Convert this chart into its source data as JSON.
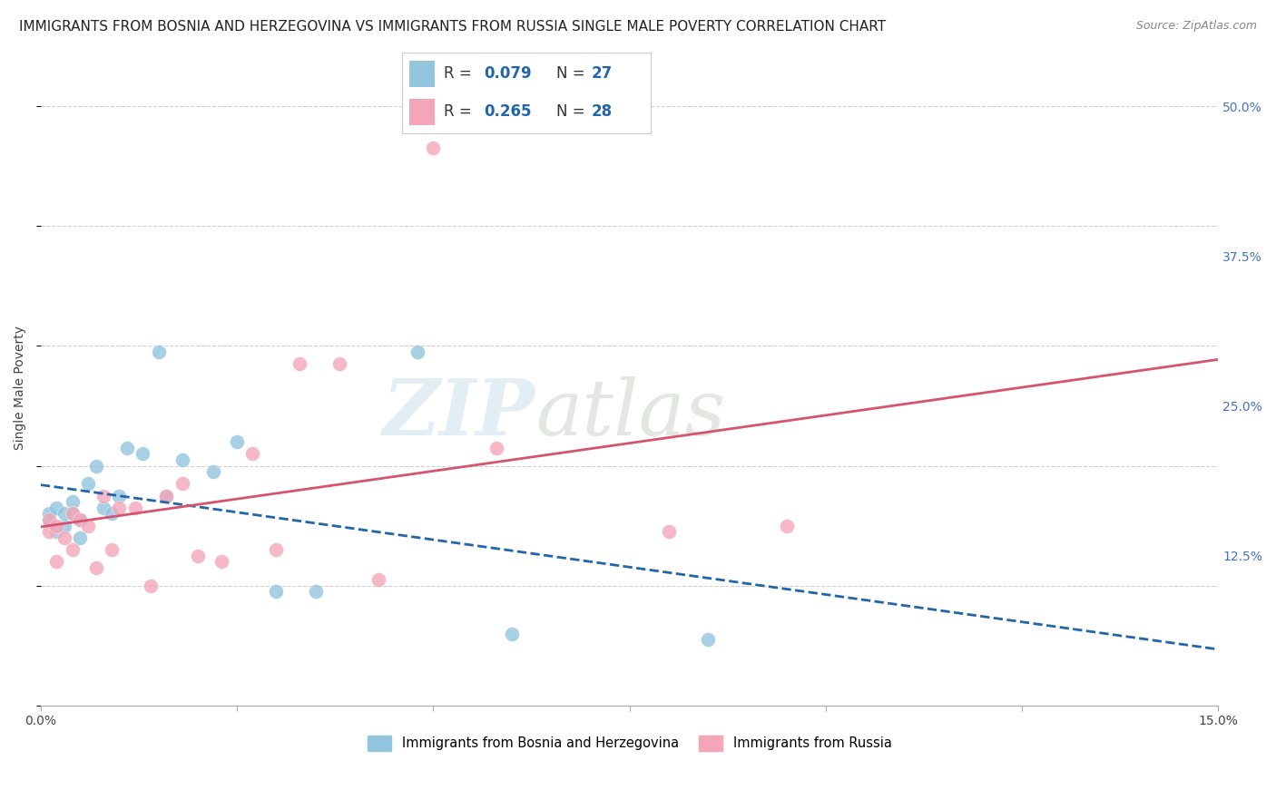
{
  "title": "IMMIGRANTS FROM BOSNIA AND HERZEGOVINA VS IMMIGRANTS FROM RUSSIA SINGLE MALE POVERTY CORRELATION CHART",
  "source": "Source: ZipAtlas.com",
  "ylabel": "Single Male Poverty",
  "xlim": [
    0.0,
    0.15
  ],
  "ylim": [
    0.0,
    0.53
  ],
  "xticks": [
    0.0,
    0.025,
    0.05,
    0.075,
    0.1,
    0.125,
    0.15
  ],
  "xtick_labels": [
    "0.0%",
    "",
    "",
    "",
    "",
    "",
    "15.0%"
  ],
  "ytick_labels_right": [
    "12.5%",
    "25.0%",
    "37.5%",
    "50.0%"
  ],
  "yticks_right": [
    0.125,
    0.25,
    0.375,
    0.5
  ],
  "legend_r1": "R = 0.079",
  "legend_n1": "N = 27",
  "legend_r2": "R = 0.265",
  "legend_n2": "N = 28",
  "color_bosnia": "#92c5de",
  "color_russia": "#f4a6b8",
  "color_bosnia_line": "#2166ac",
  "color_russia_line": "#d6546e",
  "watermark_zip": "ZIP",
  "watermark_atlas": "atlas",
  "bosnia_x": [
    0.001,
    0.001,
    0.002,
    0.002,
    0.003,
    0.003,
    0.004,
    0.004,
    0.005,
    0.005,
    0.006,
    0.007,
    0.008,
    0.009,
    0.01,
    0.011,
    0.013,
    0.015,
    0.016,
    0.018,
    0.022,
    0.025,
    0.03,
    0.035,
    0.048,
    0.06,
    0.085
  ],
  "bosnia_y": [
    0.155,
    0.16,
    0.145,
    0.165,
    0.15,
    0.16,
    0.17,
    0.16,
    0.14,
    0.155,
    0.185,
    0.2,
    0.165,
    0.16,
    0.175,
    0.215,
    0.21,
    0.295,
    0.175,
    0.205,
    0.195,
    0.22,
    0.095,
    0.095,
    0.295,
    0.06,
    0.055
  ],
  "russia_x": [
    0.001,
    0.001,
    0.002,
    0.002,
    0.003,
    0.004,
    0.004,
    0.005,
    0.006,
    0.007,
    0.008,
    0.009,
    0.01,
    0.012,
    0.014,
    0.016,
    0.018,
    0.02,
    0.023,
    0.027,
    0.03,
    0.033,
    0.038,
    0.043,
    0.05,
    0.058,
    0.08,
    0.095
  ],
  "russia_y": [
    0.155,
    0.145,
    0.12,
    0.15,
    0.14,
    0.13,
    0.16,
    0.155,
    0.15,
    0.115,
    0.175,
    0.13,
    0.165,
    0.165,
    0.1,
    0.175,
    0.185,
    0.125,
    0.12,
    0.21,
    0.13,
    0.285,
    0.285,
    0.105,
    0.465,
    0.215,
    0.145,
    0.15
  ],
  "grid_color": "#d0d0d0",
  "bg_color": "#ffffff",
  "title_fontsize": 11,
  "axis_fontsize": 10,
  "tick_fontsize": 10
}
